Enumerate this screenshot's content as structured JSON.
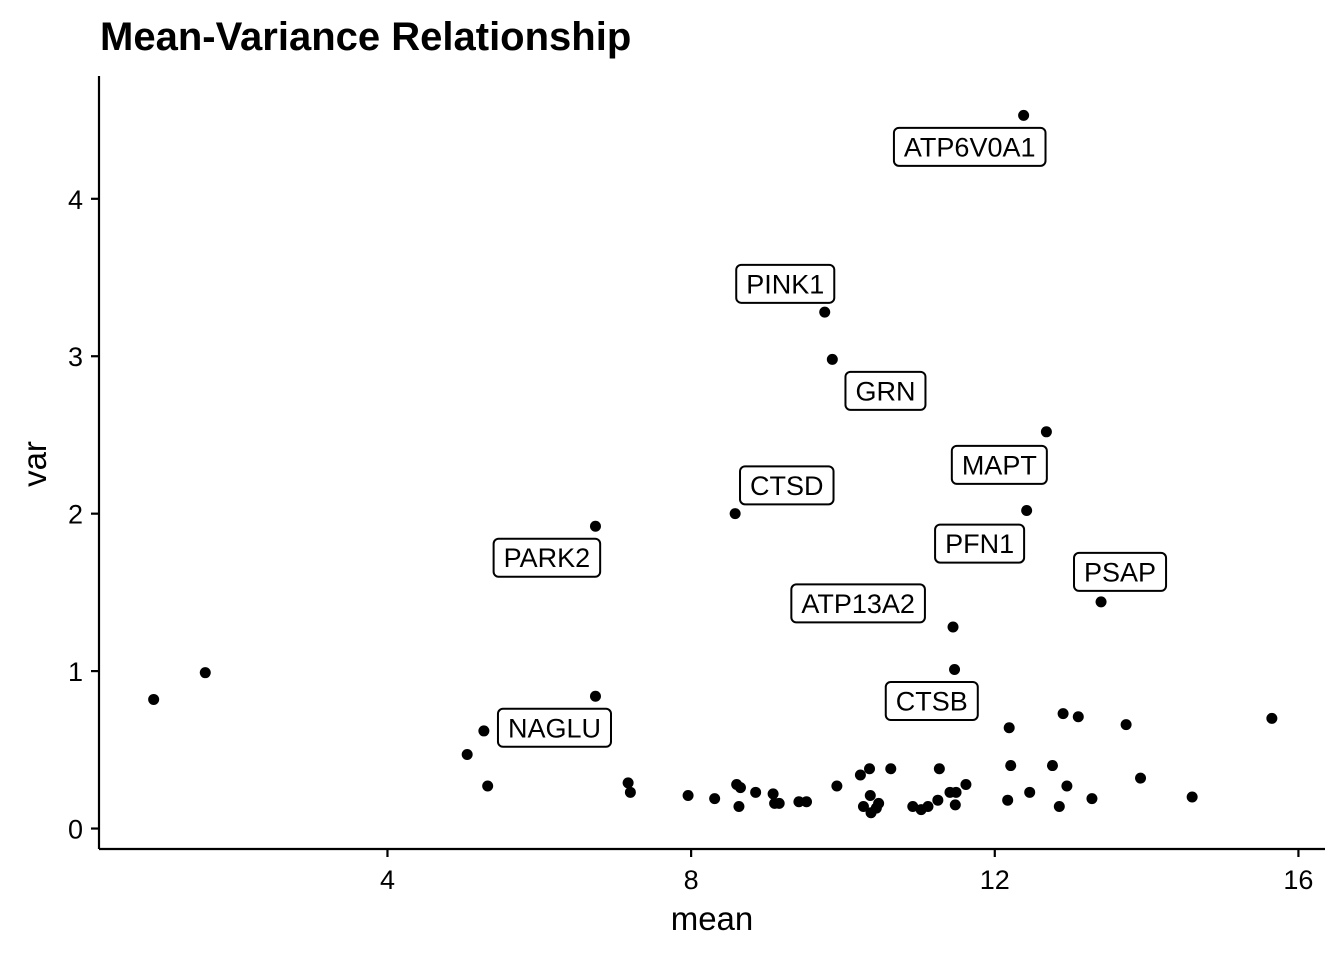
{
  "chart_data": {
    "type": "scatter",
    "title": "Mean-Variance Relationship",
    "xlabel": "mean",
    "ylabel": "var",
    "xlim": [
      0.2,
      16.35
    ],
    "ylim": [
      -0.13,
      4.78
    ],
    "xticks": [
      4,
      8,
      12,
      16
    ],
    "yticks": [
      0,
      1,
      2,
      3,
      4
    ],
    "grid": false,
    "legend": "none",
    "point_color": "#000000",
    "points": [
      {
        "x": 0.92,
        "y": 0.82
      },
      {
        "x": 1.6,
        "y": 0.99
      },
      {
        "x": 5.05,
        "y": 0.47
      },
      {
        "x": 5.27,
        "y": 0.62
      },
      {
        "x": 5.32,
        "y": 0.27
      },
      {
        "x": 6.74,
        "y": 1.92
      },
      {
        "x": 6.74,
        "y": 0.84
      },
      {
        "x": 7.17,
        "y": 0.29
      },
      {
        "x": 7.2,
        "y": 0.23
      },
      {
        "x": 7.96,
        "y": 0.21
      },
      {
        "x": 8.31,
        "y": 0.19
      },
      {
        "x": 8.58,
        "y": 2.0
      },
      {
        "x": 8.6,
        "y": 0.28
      },
      {
        "x": 8.65,
        "y": 0.26
      },
      {
        "x": 8.63,
        "y": 0.14
      },
      {
        "x": 8.85,
        "y": 0.23
      },
      {
        "x": 9.08,
        "y": 0.22
      },
      {
        "x": 9.1,
        "y": 0.16
      },
      {
        "x": 9.16,
        "y": 0.16
      },
      {
        "x": 9.42,
        "y": 0.17
      },
      {
        "x": 9.52,
        "y": 0.17
      },
      {
        "x": 9.76,
        "y": 3.28
      },
      {
        "x": 9.86,
        "y": 2.98
      },
      {
        "x": 9.92,
        "y": 0.27
      },
      {
        "x": 10.23,
        "y": 0.34
      },
      {
        "x": 10.27,
        "y": 0.14
      },
      {
        "x": 10.35,
        "y": 0.38
      },
      {
        "x": 10.36,
        "y": 0.21
      },
      {
        "x": 10.37,
        "y": 0.1
      },
      {
        "x": 10.44,
        "y": 0.13
      },
      {
        "x": 10.47,
        "y": 0.16
      },
      {
        "x": 10.63,
        "y": 0.38
      },
      {
        "x": 10.92,
        "y": 0.14
      },
      {
        "x": 11.03,
        "y": 0.12
      },
      {
        "x": 11.12,
        "y": 0.14
      },
      {
        "x": 11.25,
        "y": 0.18
      },
      {
        "x": 11.27,
        "y": 0.38
      },
      {
        "x": 11.41,
        "y": 0.23
      },
      {
        "x": 11.45,
        "y": 1.28
      },
      {
        "x": 11.47,
        "y": 1.01
      },
      {
        "x": 11.48,
        "y": 0.15
      },
      {
        "x": 11.49,
        "y": 0.23
      },
      {
        "x": 11.62,
        "y": 0.28
      },
      {
        "x": 12.17,
        "y": 0.18
      },
      {
        "x": 12.19,
        "y": 0.64
      },
      {
        "x": 12.21,
        "y": 0.4
      },
      {
        "x": 12.38,
        "y": 4.53
      },
      {
        "x": 12.42,
        "y": 2.02
      },
      {
        "x": 12.46,
        "y": 0.23
      },
      {
        "x": 12.68,
        "y": 2.52
      },
      {
        "x": 12.76,
        "y": 0.4
      },
      {
        "x": 12.85,
        "y": 0.14
      },
      {
        "x": 12.9,
        "y": 0.73
      },
      {
        "x": 12.95,
        "y": 0.27
      },
      {
        "x": 13.1,
        "y": 0.71
      },
      {
        "x": 13.28,
        "y": 0.19
      },
      {
        "x": 13.4,
        "y": 1.44
      },
      {
        "x": 13.73,
        "y": 0.66
      },
      {
        "x": 13.92,
        "y": 0.32
      },
      {
        "x": 14.6,
        "y": 0.2
      },
      {
        "x": 15.65,
        "y": 0.7
      }
    ],
    "annotations": [
      {
        "text": "ATP6V0A1",
        "x": 11.67,
        "y": 4.33
      },
      {
        "text": "PINK1",
        "x": 9.24,
        "y": 3.46
      },
      {
        "text": "GRN",
        "x": 10.56,
        "y": 2.78
      },
      {
        "text": "MAPT",
        "x": 12.06,
        "y": 2.31
      },
      {
        "text": "CTSD",
        "x": 9.26,
        "y": 2.18
      },
      {
        "text": "PARK2",
        "x": 6.1,
        "y": 1.72
      },
      {
        "text": "PFN1",
        "x": 11.8,
        "y": 1.81
      },
      {
        "text": "PSAP",
        "x": 13.65,
        "y": 1.63
      },
      {
        "text": "ATP13A2",
        "x": 10.2,
        "y": 1.43
      },
      {
        "text": "CTSB",
        "x": 11.17,
        "y": 0.81
      },
      {
        "text": "NAGLU",
        "x": 6.2,
        "y": 0.64
      }
    ]
  }
}
